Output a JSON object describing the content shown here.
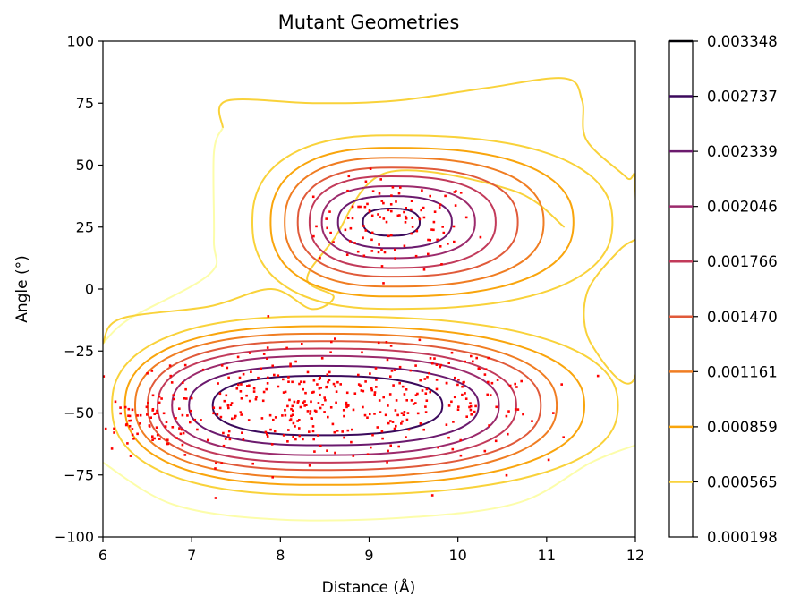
{
  "chart_data": {
    "type": "contour",
    "title": "Mutant Geometries",
    "xlabel": "Distance (Å)",
    "ylabel": "Angle (°)",
    "xlim": [
      6,
      12
    ],
    "ylim": [
      -100,
      100
    ],
    "x_ticks": [
      "6",
      "7",
      "8",
      "9",
      "10",
      "11",
      "12"
    ],
    "y_ticks": [
      "100",
      "75",
      "50",
      "25",
      "0",
      "−25",
      "−50",
      "−75",
      "−100"
    ],
    "grid": false,
    "colorbar": {
      "ticks": [
        "0.003348",
        "0.002737",
        "0.002339",
        "0.002046",
        "0.001766",
        "0.001470",
        "0.001161",
        "0.000859",
        "0.000565",
        "0.000198"
      ],
      "line_colors": [
        "#000004",
        "#3b0a5c",
        "#6b1a6e",
        "#9b2a6c",
        "#c23a5a",
        "#e05a3a",
        "#f07d22",
        "#f9a50c",
        "#f9d23a",
        "#fcfdaa"
      ]
    },
    "clusters": [
      {
        "name": "upper",
        "center": [
          9.25,
          27
        ],
        "levels": [
          {
            "level": 8,
            "sx": 0.32,
            "sy": 5.5,
            "stretch": 0.0
          },
          {
            "level": 7,
            "sx": 0.62,
            "sy": 10.5,
            "stretch": 0.1
          },
          {
            "level": 6,
            "sx": 0.82,
            "sy": 14.5,
            "stretch": 0.15
          },
          {
            "level": 5,
            "sx": 0.98,
            "sy": 18.5,
            "stretch": 0.2
          },
          {
            "level": 4,
            "sx": 1.14,
            "sy": 22,
            "stretch": 0.25
          },
          {
            "level": 3,
            "sx": 1.32,
            "sy": 26,
            "stretch": 0.3
          },
          {
            "level": 2,
            "sx": 1.52,
            "sy": 30,
            "stretch": 0.35
          },
          {
            "level": 1,
            "sx": 1.78,
            "sy": 35,
            "stretch": 0.4
          }
        ]
      },
      {
        "name": "lower",
        "center": [
          8.45,
          -47
        ],
        "levels": [
          {
            "level": 8,
            "sx": 1.25,
            "sy": 12,
            "stretch": 0.1
          },
          {
            "level": 7,
            "sx": 1.55,
            "sy": 16,
            "stretch": 0.15
          },
          {
            "level": 6,
            "sx": 1.75,
            "sy": 20,
            "stretch": 0.15
          },
          {
            "level": 5,
            "sx": 1.92,
            "sy": 23,
            "stretch": 0.15
          },
          {
            "level": 4,
            "sx": 2.07,
            "sy": 26,
            "stretch": 0.2
          },
          {
            "level": 3,
            "sx": 2.22,
            "sy": 29,
            "stretch": 0.2
          },
          {
            "level": 2,
            "sx": 2.38,
            "sy": 32,
            "stretch": 0.25
          },
          {
            "level": 1,
            "sx": 2.58,
            "sy": 36,
            "stretch": 0.3
          }
        ]
      }
    ],
    "outer_contours": [
      {
        "level": 1,
        "points": [
          [
            7.35,
            65
          ],
          [
            7.4,
            76
          ],
          [
            8.4,
            75
          ],
          [
            9.3,
            76
          ],
          [
            10.3,
            81
          ],
          [
            11.2,
            85
          ],
          [
            11.4,
            76
          ],
          [
            11.45,
            60
          ],
          [
            11.9,
            45
          ],
          [
            12,
            40
          ],
          [
            12,
            -35
          ],
          [
            11.5,
            -22
          ],
          [
            11.45,
            -2
          ],
          [
            11.8,
            15
          ],
          [
            12,
            20
          ]
        ]
      },
      {
        "level": 0,
        "points": [
          [
            7.35,
            65
          ],
          [
            7.25,
            55
          ],
          [
            7.25,
            20
          ],
          [
            7.2,
            6
          ],
          [
            6.3,
            -12
          ],
          [
            6,
            -22
          ]
        ]
      },
      {
        "level": 0,
        "points": [
          [
            6,
            -70
          ],
          [
            6.8,
            -87
          ],
          [
            8,
            -93
          ],
          [
            9.5,
            -92
          ],
          [
            10.7,
            -86
          ],
          [
            11.5,
            -70
          ],
          [
            12,
            -63
          ]
        ]
      }
    ],
    "bridge": [
      [
        6.0,
        -22
      ],
      [
        6.2,
        -12
      ],
      [
        7.2,
        -7
      ],
      [
        7.9,
        0
      ],
      [
        8.35,
        -8
      ],
      [
        8.6,
        -3
      ],
      [
        8.3,
        4
      ],
      [
        8.6,
        20
      ],
      [
        9.2,
        47
      ],
      [
        10.6,
        40
      ],
      [
        11.2,
        25
      ]
    ],
    "scatter": {
      "color": "#ff0000",
      "groups": [
        {
          "center": [
            9.3,
            26
          ],
          "spread": [
            0.45,
            9
          ],
          "n": 110
        },
        {
          "center": [
            8.3,
            -47
          ],
          "spread": [
            1.0,
            11
          ],
          "n": 330
        },
        {
          "center": [
            6.6,
            -52
          ],
          "spread": [
            0.3,
            6
          ],
          "n": 60
        },
        {
          "center": [
            10.0,
            -43
          ],
          "spread": [
            0.5,
            10
          ],
          "n": 70
        }
      ]
    }
  }
}
